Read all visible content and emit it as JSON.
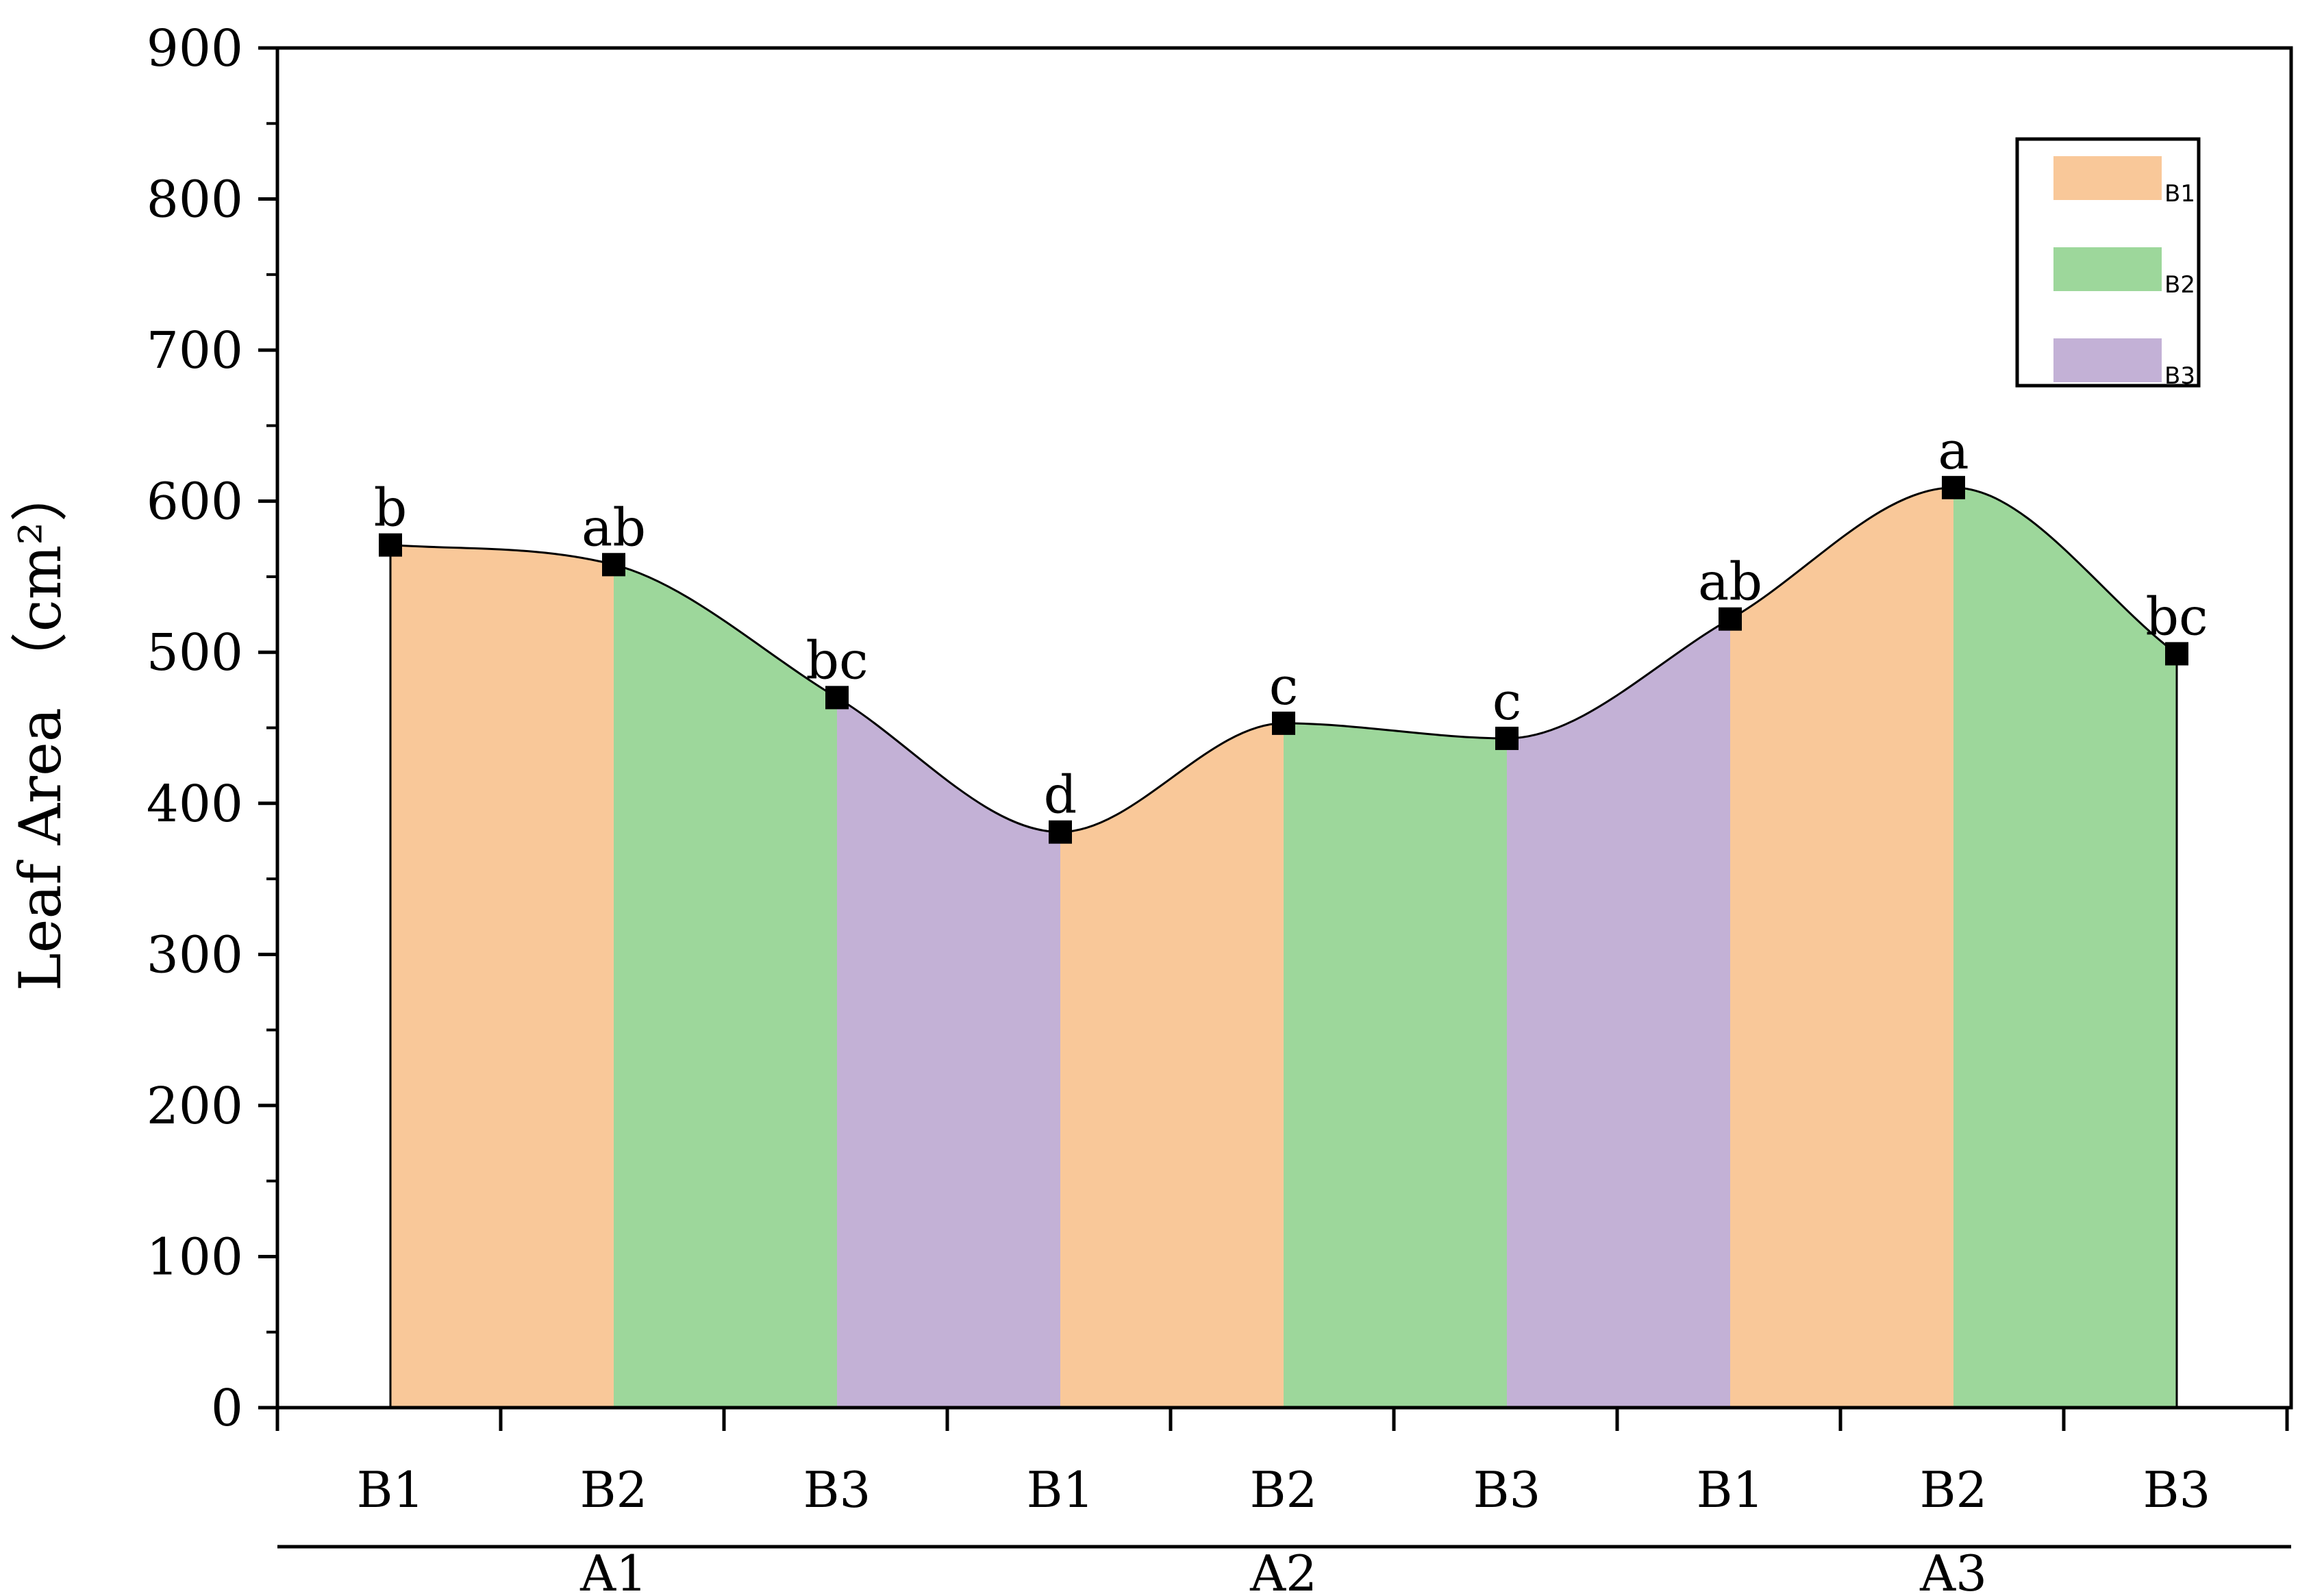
{
  "chart_data": {
    "type": "area",
    "ylabel": "Leaf Area  （cm²）",
    "ylim": [
      0,
      900
    ],
    "yticks": [
      0,
      100,
      200,
      300,
      400,
      500,
      600,
      700,
      800,
      900
    ],
    "categories": [
      "B1",
      "B2",
      "B3",
      "B1",
      "B2",
      "B3",
      "B1",
      "B2",
      "B3"
    ],
    "groups": [
      {
        "label": "A1",
        "members": [
          "B1",
          "B2",
          "B3"
        ]
      },
      {
        "label": "A2",
        "members": [
          "B1",
          "B2",
          "B3"
        ]
      },
      {
        "label": "A3",
        "members": [
          "B1",
          "B2",
          "B3"
        ]
      }
    ],
    "values": [
      571,
      558,
      470,
      381,
      453,
      443,
      522,
      609,
      499
    ],
    "significance_letters": [
      "b",
      "ab",
      "bc",
      "d",
      "c",
      "c",
      "ab",
      "a",
      "bc"
    ],
    "legend": {
      "placement": "top-right",
      "entries": [
        {
          "label": "B1",
          "color": "#F9C899"
        },
        {
          "label": "B2",
          "color": "#9DD79B"
        },
        {
          "label": "B3",
          "color": "#C3B1D6"
        }
      ]
    },
    "segment_colors": [
      "#F9C899",
      "#9DD79B",
      "#C3B1D6",
      "#F9C899",
      "#9DD79B",
      "#C3B1D6",
      "#F9C899",
      "#9DD79B"
    ],
    "grid": false
  }
}
